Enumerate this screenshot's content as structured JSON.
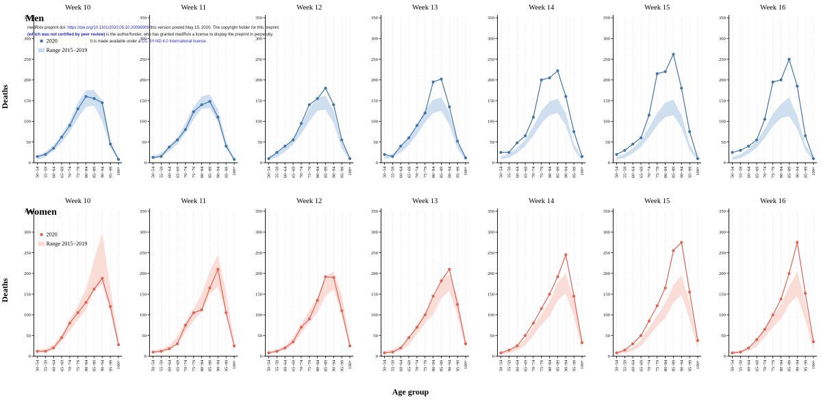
{
  "watermark": {
    "line1_prefix": "medRxiv preprint doi: ",
    "line1_link": "https://doi.org/10.1101/2020.05.10.20096909",
    "line1_suffix": " this version posted May 15, 2020. The copyright holder for this preprint",
    "line2_emph": "(which was not certified by peer review)",
    "line2_rest": " is the author/funder, who has granted medRxiv a license to display the preprint in perpetuity.",
    "line3_prefix": "It is made available under a ",
    "line3_link": "CC-BY-ND 4.0 International license",
    "line3_suffix": " ."
  },
  "chart_data": {
    "type": "line",
    "categories": [
      "50−54",
      "55−59",
      "60−64",
      "65−69",
      "70−74",
      "75−79",
      "80−84",
      "85−89",
      "90−94",
      "95−99",
      "100+"
    ],
    "ylim": [
      0,
      350
    ],
    "yticks": [
      0,
      50,
      100,
      150,
      200,
      250,
      300,
      350
    ],
    "ylabel": "Deaths",
    "xlabel": "Age group",
    "legend": {
      "line_label": "2020",
      "band_label": "Range 2015−2019"
    },
    "rows": [
      {
        "label": "Men",
        "line_color": "#3f74ad",
        "band_color": "#c6daed",
        "charts": [
          {
            "title": "Week 10",
            "y2020": [
              15,
              20,
              35,
              62,
              90,
              130,
              160,
              155,
              145,
              45,
              8
            ],
            "band_low": [
              8,
              14,
              28,
              48,
              75,
              108,
              135,
              138,
              100,
              38,
              5
            ],
            "band_high": [
              18,
              26,
              42,
              68,
              100,
              145,
              175,
              175,
              150,
              55,
              12
            ]
          },
          {
            "title": "Week 11",
            "y2020": [
              13,
              15,
              38,
              55,
              80,
              123,
              140,
              148,
              110,
              40,
              8
            ],
            "band_low": [
              8,
              14,
              28,
              45,
              72,
              105,
              130,
              132,
              98,
              36,
              5
            ],
            "band_high": [
              16,
              24,
              40,
              62,
              95,
              135,
              160,
              165,
              128,
              52,
              12
            ]
          },
          {
            "title": "Week 12",
            "y2020": [
              10,
              25,
              40,
              55,
              95,
              140,
              155,
              180,
              140,
              55,
              10
            ],
            "band_low": [
              8,
              13,
              26,
              44,
              70,
              100,
              125,
              128,
              95,
              35,
              5
            ],
            "band_high": [
              16,
              23,
              38,
              60,
              92,
              130,
              158,
              162,
              125,
              50,
              12
            ]
          },
          {
            "title": "Week 13",
            "y2020": [
              20,
              15,
              40,
              60,
              90,
              120,
              195,
              202,
              135,
              52,
              12
            ],
            "band_low": [
              8,
              13,
              25,
              42,
              68,
              98,
              120,
              125,
              92,
              34,
              5
            ],
            "band_high": [
              15,
              22,
              37,
              58,
              90,
              128,
              152,
              158,
              122,
              48,
              12
            ]
          },
          {
            "title": "Week 14",
            "y2020": [
              25,
              25,
              48,
              65,
              110,
              200,
              205,
              222,
              160,
              75,
              15
            ],
            "band_low": [
              8,
              12,
              24,
              40,
              65,
              95,
              115,
              120,
              90,
              32,
              5
            ],
            "band_high": [
              15,
              22,
              36,
              56,
              88,
              125,
              148,
              155,
              120,
              46,
              12
            ]
          },
          {
            "title": "Week 15",
            "y2020": [
              20,
              30,
              45,
              60,
              115,
              215,
              220,
              262,
              180,
              75,
              10
            ],
            "band_low": [
              7,
              12,
              23,
              38,
              62,
              90,
              110,
              115,
              85,
              30,
              5
            ],
            "band_high": [
              14,
              21,
              35,
              54,
              85,
              120,
              145,
              152,
              115,
              45,
              11
            ]
          },
          {
            "title": "Week 16",
            "y2020": [
              25,
              30,
              40,
              55,
              105,
              195,
              200,
              250,
              185,
              65,
              10
            ],
            "band_low": [
              7,
              11,
              22,
              36,
              60,
              88,
              108,
              112,
              82,
              30,
              5
            ],
            "band_high": [
              14,
              20,
              34,
              52,
              82,
              118,
              142,
              158,
              112,
              44,
              11
            ]
          }
        ]
      },
      {
        "label": "Women",
        "line_color": "#e8604f",
        "band_color": "#f9d7cf",
        "charts": [
          {
            "title": "Week 10",
            "y2020": [
              12,
              12,
              20,
              45,
              80,
              105,
              130,
              162,
              188,
              120,
              28
            ],
            "band_low": [
              8,
              10,
              16,
              35,
              62,
              88,
              112,
              158,
              175,
              110,
              22
            ],
            "band_high": [
              16,
              18,
              28,
              52,
              88,
              122,
              162,
              232,
              298,
              165,
              40
            ]
          },
          {
            "title": "Week 11",
            "y2020": [
              10,
              12,
              18,
              30,
              75,
              105,
              112,
              165,
              210,
              105,
              25
            ],
            "band_low": [
              7,
              9,
              15,
              30,
              58,
              85,
              108,
              150,
              168,
              105,
              20
            ],
            "band_high": [
              14,
              17,
              26,
              48,
              82,
              115,
              150,
              205,
              245,
              155,
              38
            ]
          },
          {
            "title": "Week 12",
            "y2020": [
              8,
              12,
              20,
              35,
              70,
              90,
              135,
              192,
              190,
              110,
              25
            ],
            "band_low": [
              7,
              9,
              15,
              28,
              55,
              82,
              105,
              145,
              162,
              100,
              20
            ],
            "band_high": [
              13,
              16,
              25,
              45,
              78,
              110,
              142,
              192,
              205,
              148,
              36
            ]
          },
          {
            "title": "Week 13",
            "y2020": [
              8,
              10,
              20,
              45,
              70,
              100,
              145,
              182,
              210,
              125,
              30
            ],
            "band_low": [
              7,
              9,
              14,
              27,
              53,
              80,
              100,
              140,
              158,
              98,
              19
            ],
            "band_high": [
              13,
              16,
              24,
              44,
              75,
              106,
              138,
              185,
              198,
              142,
              35
            ]
          },
          {
            "title": "Week 14",
            "y2020": [
              8,
              15,
              25,
              50,
              80,
              115,
              150,
              192,
              245,
              145,
              33
            ],
            "band_low": [
              6,
              8,
              14,
              26,
              50,
              76,
              96,
              135,
              152,
              95,
              18
            ],
            "band_high": [
              12,
              15,
              23,
              42,
              72,
              102,
              132,
              178,
              200,
              138,
              34
            ]
          },
          {
            "title": "Week 15",
            "y2020": [
              8,
              15,
              30,
              50,
              85,
              122,
              165,
              255,
              275,
              155,
              38
            ],
            "band_low": [
              6,
              8,
              13,
              25,
              48,
              73,
              92,
              130,
              148,
              90,
              18
            ],
            "band_high": [
              12,
              15,
              22,
              40,
              70,
              98,
              128,
              172,
              195,
              132,
              33
            ]
          },
          {
            "title": "Week 16",
            "y2020": [
              8,
              10,
              20,
              40,
              65,
              100,
              138,
              200,
              275,
              152,
              35
            ],
            "band_low": [
              6,
              8,
              13,
              24,
              46,
              70,
              90,
              126,
              145,
              88,
              17
            ],
            "band_high": [
              12,
              14,
              21,
              39,
              68,
              95,
              125,
              168,
              205,
              130,
              32
            ]
          }
        ]
      }
    ]
  }
}
